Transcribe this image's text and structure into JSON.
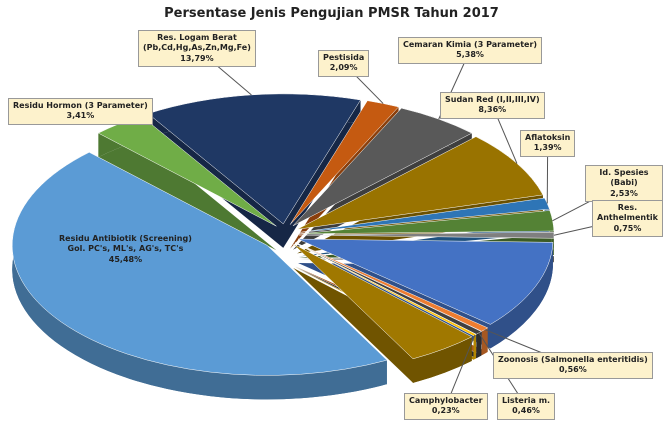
{
  "chart_data": {
    "type": "pie",
    "title": "Persentase Jenis Pengujian PMSR Tahun 2017",
    "categories": [
      "Res. Logam Berat\n(Pb,Cd,Hg,As,Zn,Mg,Fe)",
      "Pestisida",
      "Cemaran Kimia (3 Parameter)",
      "Sudan Red (I,II,III,IV)",
      "Aflatoksin",
      "Id. Spesies (Babi)",
      "Res. Anthelmentik",
      null,
      "Zoonosis (Salmonella enteritidis)",
      "Listeria m.",
      "Camphylobacter",
      null,
      "Residu Antibiotik (Screening)\nGol. PC's, ML's, AG's, TC's",
      "Residu Hormon (3 Parameter)"
    ],
    "values": [
      13.79,
      2.09,
      5.38,
      8.36,
      1.39,
      2.53,
      0.75,
      11,
      0.56,
      0.46,
      0.23,
      4.57,
      45.48,
      3.41
    ],
    "value_labels": [
      "13,79%",
      "2,09%",
      "5,38%",
      "8,36%",
      "1,39%",
      "2,53%",
      "0,75%",
      null,
      "0,56%",
      "0,46%",
      "0,23%",
      null,
      "45,48%",
      "3,41%"
    ],
    "colors": [
      "#1f3864",
      "#c55a11",
      "#595959",
      "#997300",
      "#2e75b6",
      "#548235",
      "#7f7f7f",
      "#4472c4",
      "#ed7d31",
      "#404040",
      "#ffc000",
      "#a07800",
      "#5b9bd5",
      "#70ad47"
    ]
  }
}
